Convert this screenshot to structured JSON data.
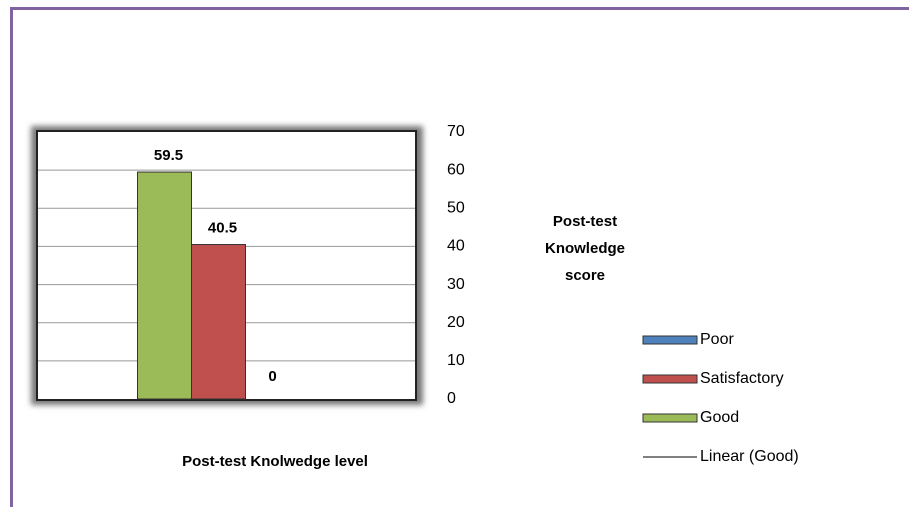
{
  "chart_data": {
    "type": "bar",
    "title": "Post-test Knowledge score",
    "x_label": "Post-test Knolwedge level",
    "categories": [
      null
    ],
    "series": [
      {
        "name": "Good",
        "color": "#9bbb59",
        "values": [
          59.5
        ]
      },
      {
        "name": "Satisfactory",
        "color": "#c0504d",
        "values": [
          40.5
        ]
      },
      {
        "name": "Poor",
        "color": "#4f81bd",
        "values": [
          0
        ]
      }
    ],
    "trendline": {
      "name": "Linear (Good)"
    },
    "ylim": [
      0,
      70
    ],
    "yticks": [
      0,
      10,
      20,
      30,
      40,
      50,
      60,
      70
    ],
    "grid": true,
    "legend": "right"
  }
}
